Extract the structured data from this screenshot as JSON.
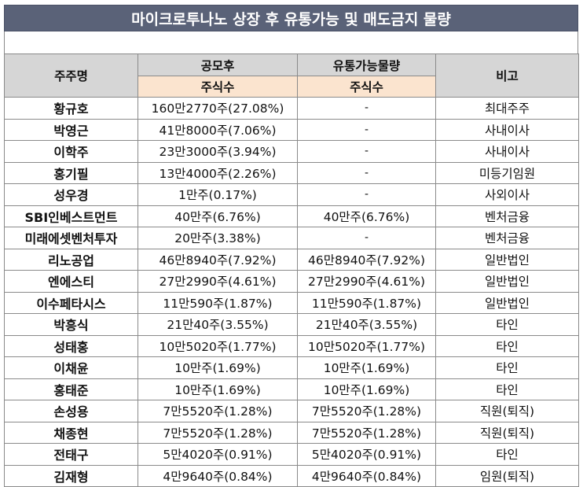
{
  "title": "마이크로투나노 상장 후 유통가능 및 매도금지 물량",
  "headers": {
    "shareholder": "주주명",
    "after_ipo": "공모후",
    "tradable": "유통가능물량",
    "note": "비고",
    "shares_1": "주식수",
    "shares_2": "주식수"
  },
  "rows": [
    {
      "name": "황규호",
      "after_ipo": "160만2770주(27.08%)",
      "tradable": "-",
      "note": "최대주주"
    },
    {
      "name": "박영근",
      "after_ipo": "41만8000주(7.06%)",
      "tradable": "-",
      "note": "사내이사"
    },
    {
      "name": "이학주",
      "after_ipo": "23만3000주(3.94%)",
      "tradable": "-",
      "note": "사내이사"
    },
    {
      "name": "홍기필",
      "after_ipo": "13만4000주(2.26%)",
      "tradable": "-",
      "note": "미등기임원"
    },
    {
      "name": "성우경",
      "after_ipo": "1만주(0.17%)",
      "tradable": "-",
      "note": "사외이사"
    },
    {
      "name": "SBI인베스트먼트",
      "after_ipo": "40만주(6.76%)",
      "tradable": "40만주(6.76%)",
      "note": "벤처금융"
    },
    {
      "name": "미래에셋벤처투자",
      "after_ipo": "20만주(3.38%)",
      "tradable": "-",
      "note": "벤처금융"
    },
    {
      "name": "리노공업",
      "after_ipo": "46만8940주(7.92%)",
      "tradable": "46만8940주(7.92%)",
      "note": "일반법인"
    },
    {
      "name": "엔에스티",
      "after_ipo": "27만2990주(4.61%)",
      "tradable": "27만2990주(4.61%)",
      "note": "일반법인"
    },
    {
      "name": "이수페타시스",
      "after_ipo": "11만590주(1.87%)",
      "tradable": "11만590주(1.87%)",
      "note": "일반법인"
    },
    {
      "name": "박흥식",
      "after_ipo": "21만40주(3.55%)",
      "tradable": "21만40주(3.55%)",
      "note": "타인"
    },
    {
      "name": "성태홍",
      "after_ipo": "10만5020주(1.77%)",
      "tradable": "10만5020주(1.77%)",
      "note": "타인"
    },
    {
      "name": "이채윤",
      "after_ipo": "10만주(1.69%)",
      "tradable": "10만주(1.69%)",
      "note": "타인"
    },
    {
      "name": "홍태준",
      "after_ipo": "10만주(1.69%)",
      "tradable": "10만주(1.69%)",
      "note": "타인"
    },
    {
      "name": "손성용",
      "after_ipo": "7만5520주(1.28%)",
      "tradable": "7만5520주(1.28%)",
      "note": "직원(퇴직)"
    },
    {
      "name": "채종현",
      "after_ipo": "7만5520주(1.28%)",
      "tradable": "7만5520주(1.28%)",
      "note": "직원(퇴직)"
    },
    {
      "name": "전태구",
      "after_ipo": "5만4020주(0.91%)",
      "tradable": "5만4020주(0.91%)",
      "note": "타인"
    },
    {
      "name": "김재형",
      "after_ipo": "4만9640주(0.84%)",
      "tradable": "4만9640주(0.84%)",
      "note": "임원(퇴직)"
    }
  ]
}
